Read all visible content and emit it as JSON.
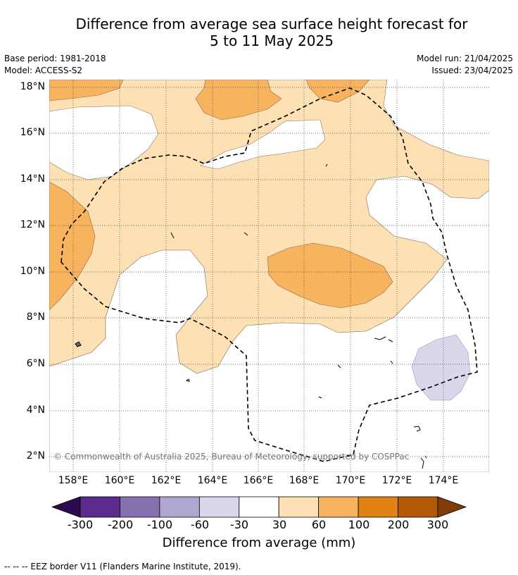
{
  "title_line1": "Difference from average sea surface height forecast for",
  "title_line2": "5 to 11 May 2025",
  "meta": {
    "base_period": "Base period: 1981-2018",
    "model": "Model: ACCESS-S2",
    "model_run": "Model run: 21/04/2025",
    "issued": "Issued: 23/04/2025"
  },
  "copyright": "© Commonwealth of Australia 2025, Bureau of Meteorology, supported by COSPPac",
  "axes": {
    "lat_labels": [
      "18°N",
      "16°N",
      "14°N",
      "12°N",
      "10°N",
      "8°N",
      "6°N",
      "4°N",
      "2°N"
    ],
    "lon_labels": [
      "158°E",
      "160°E",
      "162°E",
      "164°E",
      "166°E",
      "168°E",
      "170°E",
      "172°E",
      "174°E"
    ]
  },
  "colorbar": {
    "title": "Difference from average (mm)",
    "ticks": [
      "-300",
      "-200",
      "-100",
      "-60",
      "-30",
      "30",
      "60",
      "100",
      "200",
      "300"
    ],
    "colors": [
      "#2b0a4e",
      "#5a2a8c",
      "#8471b0",
      "#b0a7d1",
      "#d8d8ea",
      "#ffffff",
      "#fde0b4",
      "#f8b35e",
      "#e08214",
      "#b35806",
      "#7f3b08"
    ]
  },
  "legend_note": "--  --  -- EEZ border V11 (Flanders Marine Institute, 2019)."
}
